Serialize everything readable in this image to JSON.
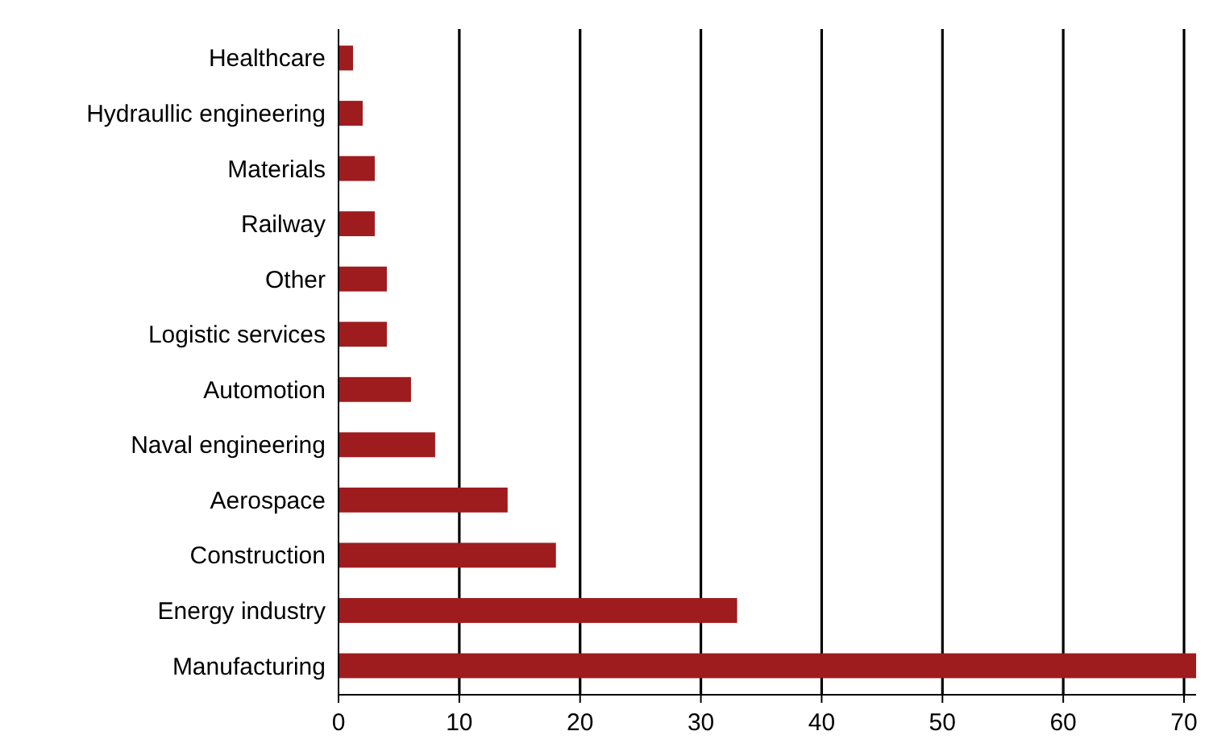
{
  "chart_data": {
    "type": "bar",
    "orientation": "horizontal",
    "categories": [
      "Healthcare",
      "Hydraullic engineering",
      "Materials",
      "Railway",
      "Other",
      "Logistic services",
      "Automotion",
      "Naval engineering",
      "Aerospace",
      "Construction",
      "Energy industry",
      "Manufacturing"
    ],
    "values": [
      1.2,
      2,
      3,
      3,
      4,
      4,
      6,
      8,
      14,
      18,
      33,
      71
    ],
    "color": "#9e1b1e",
    "xlim": [
      0,
      71
    ],
    "xticks": [
      0,
      10,
      20,
      30,
      40,
      50,
      60,
      70
    ],
    "grid": "x"
  }
}
